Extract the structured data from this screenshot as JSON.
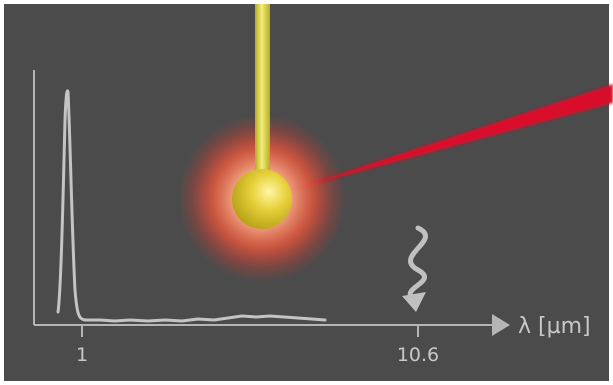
{
  "colors": {
    "background": "#4b4b4b",
    "frame": "#ffffff",
    "axis": "#b5b5b5",
    "spectrum": "#c4c4c4",
    "text": "#c8c8c8",
    "rod": "#ddd84a",
    "droplet": "#e2cf3a",
    "glow": "#ff3a2a",
    "laser": "#e01028",
    "wavy_arrow": "#c0c0c0"
  },
  "labels": {
    "axis_label": "λ [µm]",
    "tick_1": "1",
    "tick_2": "10.6"
  },
  "icons": {
    "emission_arrow": "wavy-down-arrow-icon",
    "axis_arrow": "arrow-right-icon"
  }
}
